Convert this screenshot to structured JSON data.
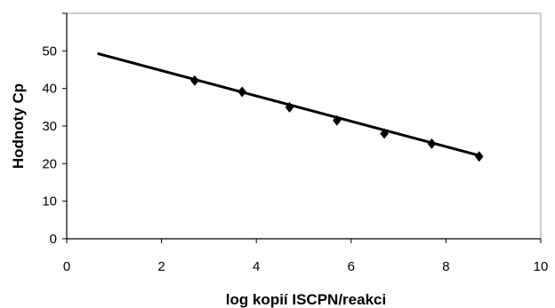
{
  "chart_data": {
    "type": "scatter",
    "title": "",
    "xlabel": "log kopií ISCPN/reakci",
    "ylabel": "Hodnoty Cp",
    "xlim": [
      0,
      10
    ],
    "ylim": [
      0,
      60
    ],
    "xticks": [
      0,
      2,
      4,
      6,
      8,
      10
    ],
    "yticks": [
      0,
      10,
      20,
      30,
      40,
      50
    ],
    "grid": false,
    "legend": "none",
    "series": [
      {
        "x": [
          2.7,
          3.7,
          4.7,
          5.7,
          6.7,
          7.7,
          8.7
        ],
        "y": [
          42.1,
          39.1,
          35.0,
          31.5,
          28.0,
          25.3,
          21.9
        ],
        "marker": "diamond",
        "color": "#000000"
      }
    ],
    "trendline": {
      "type": "linear",
      "x": [
        0.65,
        8.75
      ],
      "y": [
        49.3,
        22.0
      ],
      "color": "#000000"
    }
  }
}
